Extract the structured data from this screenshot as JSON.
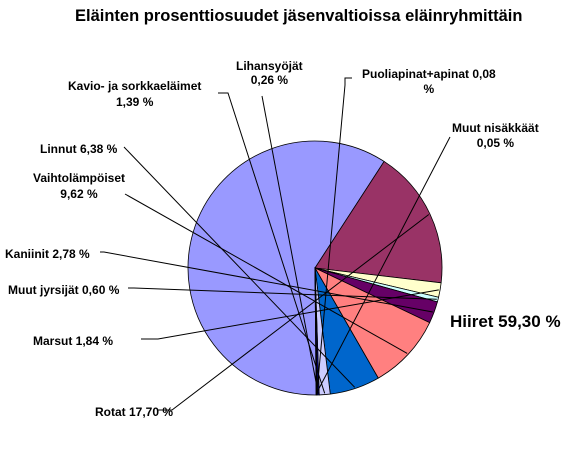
{
  "chart_data": {
    "type": "pie",
    "title": "Eläinten prosenttiosuudet jäsenvaltioissa eläinryhmittäin",
    "slices": [
      {
        "name": "Hiiret",
        "value": 59.3,
        "label": "Hiiret 59,30 %",
        "color": "#9999ff"
      },
      {
        "name": "Rotat",
        "value": 17.7,
        "label": "Rotat 17,70 %",
        "color": "#993366"
      },
      {
        "name": "Marsut",
        "value": 1.84,
        "label": "Marsut 1,84 %",
        "color": "#ffffcc"
      },
      {
        "name": "Muut jyrsijät",
        "value": 0.6,
        "label": "Muut jyrsijät 0,60 %",
        "color": "#ccffff"
      },
      {
        "name": "Kaniinit",
        "value": 2.78,
        "label": "Kaniinit 2,78 %",
        "color": "#660066"
      },
      {
        "name": "Vaihtolämpöiset",
        "value": 9.62,
        "label_lines": [
          "Vaihtolämpöiset",
          "9,62 %"
        ],
        "color": "#ff8080"
      },
      {
        "name": "Linnut",
        "value": 6.38,
        "label": "Linnut 6,38 %",
        "color": "#0066cc"
      },
      {
        "name": "Kavio- ja sorkkaeläimet",
        "value": 1.39,
        "label_lines": [
          "Kavio- ja sorkkaeläimet",
          "1,39 %"
        ],
        "color": "#ccccff"
      },
      {
        "name": "Lihansyöjät",
        "value": 0.26,
        "label_lines": [
          "Lihansyöjät",
          "0,26 %"
        ],
        "color": "#000080"
      },
      {
        "name": "Puoliapinat+apinat",
        "value": 0.08,
        "label_lines": [
          "Puoliapinat+apinat 0,08",
          "%"
        ],
        "color": "#ff00ff"
      },
      {
        "name": "Muut nisäkkäät",
        "value": 0.05,
        "label_lines": [
          "Muut nisäkkäät",
          "0,05 %"
        ],
        "color": "#ffff00"
      }
    ],
    "legend": "none"
  }
}
